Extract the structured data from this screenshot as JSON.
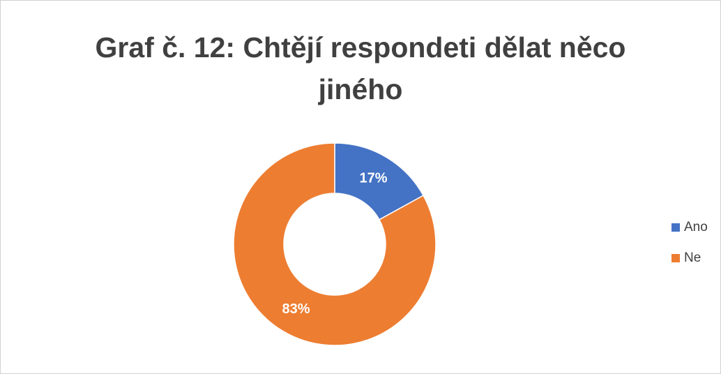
{
  "chart_data": {
    "type": "donut",
    "title": "Graf č. 12: Chtějí respondeti dělat něco jiného",
    "categories": [
      "Ano",
      "Ne"
    ],
    "values": [
      17,
      83
    ],
    "value_labels": [
      "17%",
      "83%"
    ],
    "colors": [
      "#4472c4",
      "#ed7d31"
    ],
    "legend": "right"
  }
}
